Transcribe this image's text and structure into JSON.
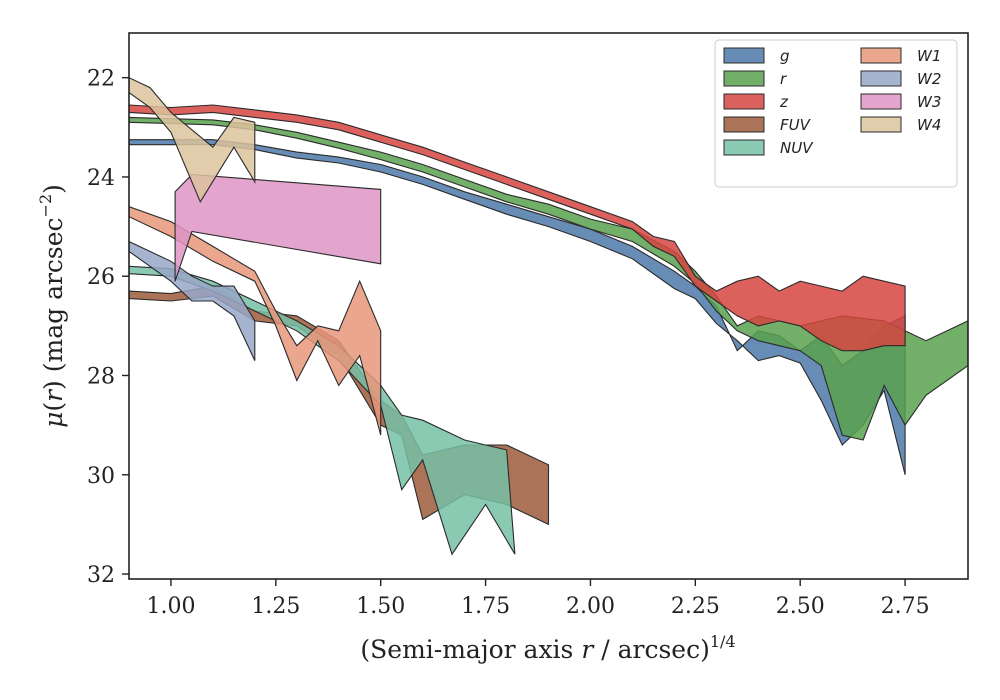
{
  "chart_data": {
    "type": "area",
    "xlabel": "(Semi-major axis r / arcsec)^1/4",
    "xlabel_parts": {
      "pre": "(Semi-major axis ",
      "var": "r",
      "post": " / arcsec)",
      "sup": "1/4"
    },
    "ylabel": "μ(r) (mag arcsec^−2)",
    "ylabel_parts": {
      "mu": "μ",
      "pre": "(",
      "var": "r",
      "post": ") (mag arcsec",
      "sup": "−2",
      "close": ")"
    },
    "xlim": [
      0.9,
      2.9
    ],
    "ylim": [
      32.1,
      21.1
    ],
    "y_inverted": true,
    "xticks": [
      "1.00",
      "1.25",
      "1.50",
      "1.75",
      "2.00",
      "2.25",
      "2.50",
      "2.75"
    ],
    "xtick_values": [
      1.0,
      1.25,
      1.5,
      1.75,
      2.0,
      2.25,
      2.5,
      2.75
    ],
    "yticks": [
      "22",
      "24",
      "26",
      "28",
      "30",
      "32"
    ],
    "ytick_values": [
      22,
      24,
      26,
      28,
      30,
      32
    ],
    "grid": false,
    "legend_position": "top-right",
    "legend_columns": 2,
    "series": [
      {
        "name": "g",
        "color": "#4c78a8",
        "upper": [
          [
            0.9,
            23.25
          ],
          [
            1.1,
            23.25
          ],
          [
            1.2,
            23.35
          ],
          [
            1.3,
            23.5
          ],
          [
            1.4,
            23.6
          ],
          [
            1.5,
            23.75
          ],
          [
            1.6,
            24.0
          ],
          [
            1.7,
            24.3
          ],
          [
            1.8,
            24.55
          ],
          [
            1.9,
            24.8
          ],
          [
            2.0,
            25.05
          ],
          [
            2.1,
            25.4
          ],
          [
            2.2,
            25.9
          ],
          [
            2.25,
            26.2
          ],
          [
            2.3,
            26.6
          ],
          [
            2.35,
            27.5
          ],
          [
            2.4,
            27.1
          ],
          [
            2.45,
            27.2
          ],
          [
            2.5,
            27.5
          ],
          [
            2.55,
            27.2
          ],
          [
            2.6,
            27.8
          ],
          [
            2.65,
            27.5
          ],
          [
            2.7,
            27.0
          ],
          [
            2.75,
            26.8
          ]
        ],
        "lower": [
          [
            0.9,
            23.35
          ],
          [
            1.1,
            23.35
          ],
          [
            1.2,
            23.45
          ],
          [
            1.3,
            23.62
          ],
          [
            1.4,
            23.72
          ],
          [
            1.5,
            23.9
          ],
          [
            1.6,
            24.15
          ],
          [
            1.7,
            24.45
          ],
          [
            1.8,
            24.75
          ],
          [
            1.9,
            25.0
          ],
          [
            2.0,
            25.3
          ],
          [
            2.1,
            25.65
          ],
          [
            2.2,
            26.25
          ],
          [
            2.25,
            26.45
          ],
          [
            2.3,
            26.95
          ],
          [
            2.35,
            27.3
          ],
          [
            2.4,
            27.7
          ],
          [
            2.45,
            27.6
          ],
          [
            2.5,
            27.75
          ],
          [
            2.55,
            28.5
          ],
          [
            2.6,
            29.4
          ],
          [
            2.65,
            29.0
          ],
          [
            2.7,
            28.3
          ],
          [
            2.75,
            30.0
          ]
        ]
      },
      {
        "name": "r",
        "color": "#59a14f",
        "upper": [
          [
            0.9,
            22.8
          ],
          [
            1.1,
            22.85
          ],
          [
            1.2,
            22.95
          ],
          [
            1.3,
            23.1
          ],
          [
            1.4,
            23.3
          ],
          [
            1.5,
            23.5
          ],
          [
            1.6,
            23.75
          ],
          [
            1.7,
            24.05
          ],
          [
            1.8,
            24.35
          ],
          [
            1.9,
            24.55
          ],
          [
            2.0,
            24.85
          ],
          [
            2.1,
            25.05
          ],
          [
            2.2,
            25.5
          ],
          [
            2.25,
            25.9
          ],
          [
            2.3,
            26.4
          ],
          [
            2.35,
            27.0
          ],
          [
            2.4,
            26.8
          ],
          [
            2.45,
            26.9
          ],
          [
            2.5,
            27.0
          ],
          [
            2.55,
            26.9
          ],
          [
            2.6,
            26.8
          ],
          [
            2.7,
            26.9
          ],
          [
            2.8,
            27.3
          ],
          [
            2.9,
            26.9
          ]
        ],
        "lower": [
          [
            0.9,
            22.9
          ],
          [
            1.1,
            22.95
          ],
          [
            1.2,
            23.05
          ],
          [
            1.3,
            23.22
          ],
          [
            1.4,
            23.42
          ],
          [
            1.5,
            23.65
          ],
          [
            1.6,
            23.9
          ],
          [
            1.7,
            24.2
          ],
          [
            1.8,
            24.5
          ],
          [
            1.9,
            24.75
          ],
          [
            2.0,
            25.05
          ],
          [
            2.1,
            25.3
          ],
          [
            2.2,
            25.8
          ],
          [
            2.25,
            26.15
          ],
          [
            2.3,
            26.7
          ],
          [
            2.35,
            27.1
          ],
          [
            2.4,
            27.3
          ],
          [
            2.45,
            27.4
          ],
          [
            2.5,
            27.5
          ],
          [
            2.55,
            27.8
          ],
          [
            2.6,
            29.2
          ],
          [
            2.65,
            29.3
          ],
          [
            2.7,
            28.2
          ],
          [
            2.75,
            29.0
          ],
          [
            2.8,
            28.4
          ],
          [
            2.9,
            27.8
          ]
        ]
      },
      {
        "name": "z",
        "color": "#d64541",
        "upper": [
          [
            0.9,
            22.55
          ],
          [
            1.0,
            22.6
          ],
          [
            1.1,
            22.55
          ],
          [
            1.2,
            22.65
          ],
          [
            1.3,
            22.75
          ],
          [
            1.4,
            22.9
          ],
          [
            1.5,
            23.15
          ],
          [
            1.6,
            23.4
          ],
          [
            1.7,
            23.7
          ],
          [
            1.8,
            24.0
          ],
          [
            1.9,
            24.3
          ],
          [
            2.0,
            24.6
          ],
          [
            2.1,
            24.9
          ],
          [
            2.15,
            25.2
          ],
          [
            2.2,
            25.3
          ],
          [
            2.25,
            26.0
          ],
          [
            2.3,
            26.3
          ],
          [
            2.35,
            26.1
          ],
          [
            2.4,
            26.0
          ],
          [
            2.45,
            26.3
          ],
          [
            2.5,
            26.1
          ],
          [
            2.55,
            26.2
          ],
          [
            2.6,
            26.3
          ],
          [
            2.65,
            26.0
          ],
          [
            2.7,
            26.1
          ],
          [
            2.75,
            26.2
          ]
        ],
        "lower": [
          [
            0.9,
            22.7
          ],
          [
            1.0,
            22.75
          ],
          [
            1.1,
            22.7
          ],
          [
            1.2,
            22.8
          ],
          [
            1.3,
            22.9
          ],
          [
            1.4,
            23.05
          ],
          [
            1.5,
            23.3
          ],
          [
            1.6,
            23.55
          ],
          [
            1.7,
            23.85
          ],
          [
            1.8,
            24.15
          ],
          [
            1.9,
            24.45
          ],
          [
            2.0,
            24.75
          ],
          [
            2.1,
            25.05
          ],
          [
            2.15,
            25.4
          ],
          [
            2.2,
            25.6
          ],
          [
            2.25,
            26.2
          ],
          [
            2.3,
            26.5
          ],
          [
            2.35,
            26.8
          ],
          [
            2.4,
            27.0
          ],
          [
            2.45,
            26.9
          ],
          [
            2.5,
            27.0
          ],
          [
            2.55,
            27.3
          ],
          [
            2.6,
            27.5
          ],
          [
            2.65,
            27.5
          ],
          [
            2.7,
            27.4
          ],
          [
            2.75,
            27.4
          ]
        ]
      },
      {
        "name": "FUV",
        "color": "#9c5b3a",
        "upper": [
          [
            0.9,
            26.3
          ],
          [
            1.0,
            26.35
          ],
          [
            1.1,
            26.2
          ],
          [
            1.2,
            26.7
          ],
          [
            1.3,
            26.8
          ],
          [
            1.4,
            27.3
          ],
          [
            1.5,
            28.5
          ],
          [
            1.55,
            28.8
          ],
          [
            1.6,
            29.6
          ],
          [
            1.7,
            29.4
          ],
          [
            1.8,
            29.4
          ],
          [
            1.9,
            29.8
          ]
        ],
        "lower": [
          [
            0.9,
            26.45
          ],
          [
            1.0,
            26.5
          ],
          [
            1.1,
            26.4
          ],
          [
            1.2,
            26.9
          ],
          [
            1.3,
            27.0
          ],
          [
            1.4,
            27.6
          ],
          [
            1.5,
            29.0
          ],
          [
            1.55,
            29.2
          ],
          [
            1.6,
            30.9
          ],
          [
            1.7,
            30.4
          ],
          [
            1.8,
            30.6
          ],
          [
            1.9,
            31.0
          ]
        ]
      },
      {
        "name": "NUV",
        "color": "#76bfa4",
        "upper": [
          [
            0.9,
            25.8
          ],
          [
            1.0,
            25.85
          ],
          [
            1.1,
            26.1
          ],
          [
            1.2,
            26.5
          ],
          [
            1.3,
            26.9
          ],
          [
            1.4,
            27.4
          ],
          [
            1.5,
            28.2
          ],
          [
            1.55,
            28.8
          ],
          [
            1.6,
            28.9
          ],
          [
            1.7,
            29.3
          ],
          [
            1.75,
            29.4
          ],
          [
            1.8,
            29.5
          ]
        ],
        "lower": [
          [
            0.9,
            25.95
          ],
          [
            1.0,
            26.0
          ],
          [
            1.1,
            26.3
          ],
          [
            1.2,
            26.7
          ],
          [
            1.3,
            27.1
          ],
          [
            1.4,
            27.7
          ],
          [
            1.5,
            28.6
          ],
          [
            1.55,
            30.3
          ],
          [
            1.6,
            29.7
          ],
          [
            1.67,
            31.6
          ],
          [
            1.75,
            30.6
          ],
          [
            1.82,
            31.6
          ]
        ]
      },
      {
        "name": "W1",
        "color": "#e8967a",
        "upper": [
          [
            0.9,
            24.6
          ],
          [
            1.0,
            24.9
          ],
          [
            1.1,
            25.4
          ],
          [
            1.2,
            25.9
          ],
          [
            1.25,
            26.7
          ],
          [
            1.3,
            27.4
          ],
          [
            1.35,
            27.0
          ],
          [
            1.4,
            27.1
          ],
          [
            1.45,
            26.1
          ],
          [
            1.5,
            27.1
          ]
        ],
        "lower": [
          [
            0.9,
            24.8
          ],
          [
            1.0,
            25.2
          ],
          [
            1.1,
            25.7
          ],
          [
            1.2,
            26.1
          ],
          [
            1.25,
            27.0
          ],
          [
            1.3,
            28.1
          ],
          [
            1.35,
            27.3
          ],
          [
            1.4,
            28.2
          ],
          [
            1.45,
            27.6
          ],
          [
            1.5,
            29.2
          ]
        ]
      },
      {
        "name": "W2",
        "color": "#98a7c8",
        "upper": [
          [
            0.9,
            25.3
          ],
          [
            1.0,
            25.7
          ],
          [
            1.05,
            26.0
          ],
          [
            1.1,
            26.2
          ],
          [
            1.15,
            26.2
          ],
          [
            1.2,
            26.9
          ]
        ],
        "lower": [
          [
            0.9,
            25.5
          ],
          [
            1.0,
            26.1
          ],
          [
            1.05,
            26.5
          ],
          [
            1.1,
            26.5
          ],
          [
            1.15,
            26.8
          ],
          [
            1.2,
            27.7
          ]
        ]
      },
      {
        "name": "W3",
        "color": "#de94c6",
        "upper": [
          [
            1.01,
            24.3
          ],
          [
            1.05,
            23.95
          ],
          [
            1.5,
            24.25
          ]
        ],
        "lower": [
          [
            1.01,
            26.1
          ],
          [
            1.05,
            25.1
          ],
          [
            1.5,
            25.75
          ]
        ]
      },
      {
        "name": "W4",
        "color": "#dcc39c",
        "upper": [
          [
            0.9,
            22.0
          ],
          [
            0.95,
            22.2
          ],
          [
            1.0,
            22.7
          ],
          [
            1.1,
            23.4
          ],
          [
            1.15,
            22.8
          ],
          [
            1.2,
            22.9
          ]
        ],
        "lower": [
          [
            0.9,
            22.3
          ],
          [
            0.95,
            22.6
          ],
          [
            1.0,
            23.1
          ],
          [
            1.07,
            24.5
          ],
          [
            1.15,
            23.4
          ],
          [
            1.2,
            24.1
          ]
        ]
      }
    ]
  }
}
